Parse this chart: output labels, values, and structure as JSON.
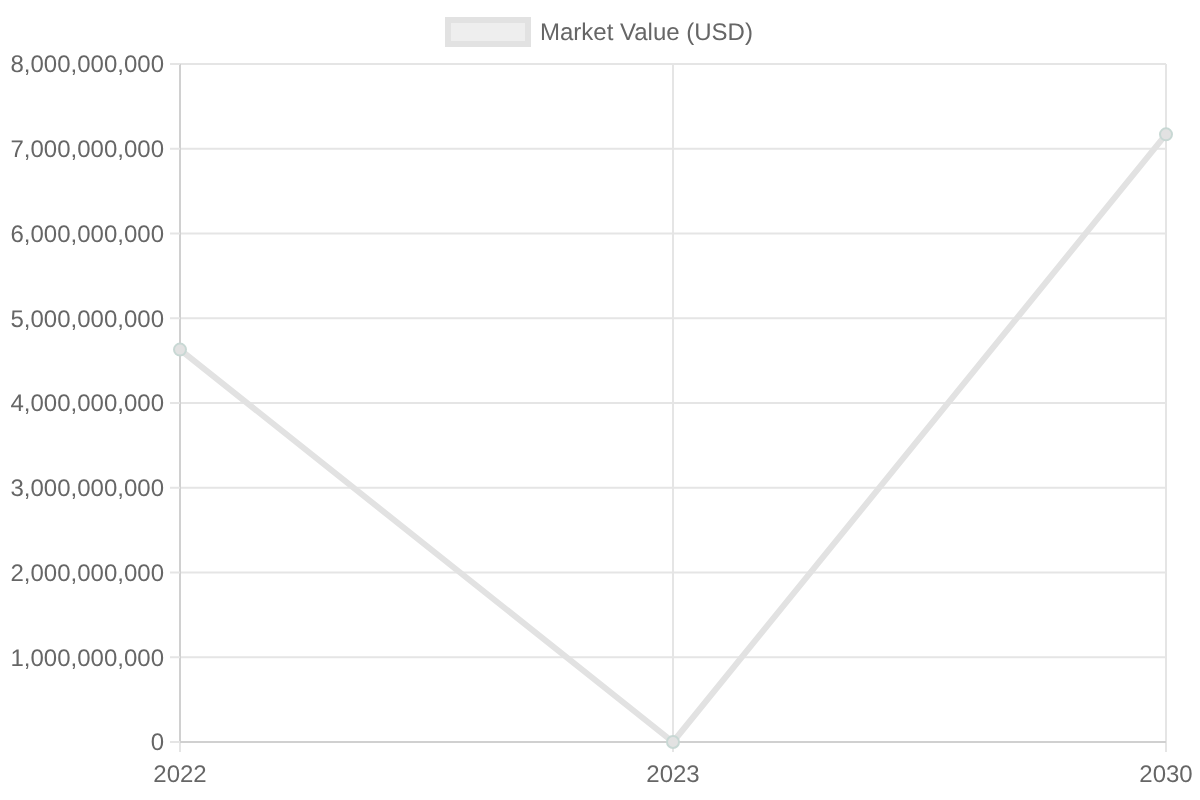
{
  "chart_data": {
    "type": "line",
    "categories": [
      "2022",
      "2023",
      "2030"
    ],
    "series": [
      {
        "name": "Market Value (USD)",
        "color": "#e2e2e2",
        "values": [
          4630000000,
          0,
          7170000000
        ]
      }
    ],
    "ylim": [
      0,
      8000000000
    ],
    "yticks": [
      {
        "value": 0,
        "label": "0"
      },
      {
        "value": 1000000000,
        "label": "1,000,000,000"
      },
      {
        "value": 2000000000,
        "label": "2,000,000,000"
      },
      {
        "value": 3000000000,
        "label": "3,000,000,000"
      },
      {
        "value": 4000000000,
        "label": "4,000,000,000"
      },
      {
        "value": 5000000000,
        "label": "5,000,000,000"
      },
      {
        "value": 6000000000,
        "label": "6,000,000,000"
      },
      {
        "value": 7000000000,
        "label": "7,000,000,000"
      },
      {
        "value": 8000000000,
        "label": "8,000,000,000"
      }
    ],
    "grid": true,
    "legend": "top",
    "marker": "circle",
    "line_style": "solid"
  }
}
